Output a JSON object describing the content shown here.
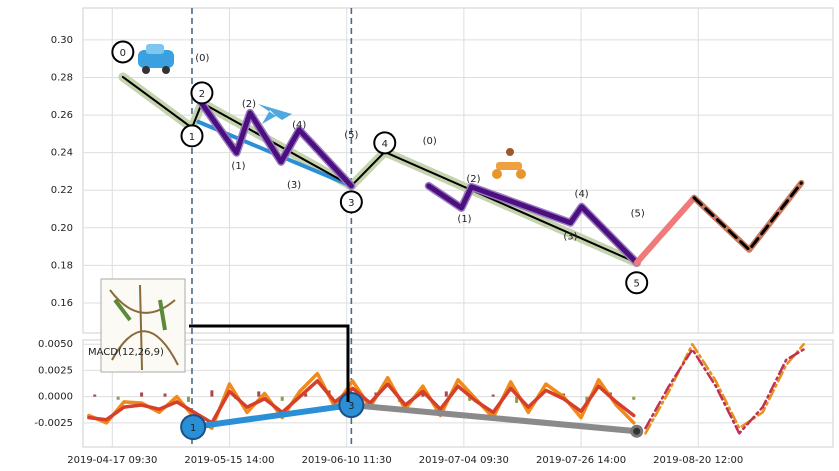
{
  "chart_data": [
    {
      "type": "line",
      "xlim": [
        0,
        128
      ],
      "ylim": [
        0.144,
        0.317
      ],
      "yticks": [
        {
          "value": 0.3,
          "label": "0.30"
        },
        0.28,
        0.26,
        0.24,
        0.22,
        {
          "value": 0.2,
          "label": "0.20"
        },
        0.18,
        0.16
      ],
      "grid": true,
      "series": [
        {
          "color": "#000000",
          "glow_color": "#c5d3ae",
          "x": [
            6.8,
            18.6,
            20.3,
            45.8,
            51.5,
            94.5
          ],
          "values": [
            0.2803,
            0.2532,
            0.2665,
            0.2223,
            0.2404,
            0.1814
          ],
          "point_labels": [
            "0",
            "1",
            "2",
            "3",
            "4",
            "5"
          ]
        },
        {
          "color": "#2b8fd6",
          "x": [
            19.7,
            45.8
          ],
          "values": [
            0.2564,
            0.2223
          ]
        },
        {
          "color": "#4b0f80",
          "x": [
            20.2,
            26.2,
            28.5,
            33.8,
            36.9,
            45.8
          ],
          "values": [
            0.2665,
            0.2399,
            0.2612,
            0.2351,
            0.2521,
            0.2223
          ],
          "point_labels": [
            "(0)",
            "(1)",
            "(2)",
            "(3)",
            "(4)",
            "(5)"
          ]
        },
        {
          "color": "#4b0f80",
          "x": [
            59.0,
            64.6,
            66.3,
            83.2,
            85.1,
            94.5
          ],
          "values": [
            0.2223,
            0.2106,
            0.2218,
            0.2027,
            0.2112,
            0.1814
          ],
          "point_labels": [
            "(0)",
            "(1)",
            "(2)",
            "(3)",
            "(4)",
            "(5)"
          ]
        },
        {
          "color": "#f07a7a",
          "x": [
            94.5,
            104.3
          ],
          "values": [
            0.1814,
            0.216
          ]
        },
        {
          "color": "#c8785a",
          "dash_color": "#000000",
          "x": [
            104.3,
            113.7,
            122.6
          ],
          "values": [
            0.216,
            0.1883,
            0.2239
          ]
        }
      ]
    },
    {
      "type": "line",
      "xlim": [
        0,
        128
      ],
      "ylim": [
        -0.0048,
        0.0054
      ],
      "yticks": [
        {
          "value": 0.005,
          "label": "0.0050"
        },
        0.0025,
        {
          "value": 0,
          "label": "0.0000"
        },
        -0.0025
      ],
      "xticks": [
        {
          "value": 5,
          "label": "2019-04-17 09:30"
        },
        {
          "value": 25,
          "label": "2019-05-15 14:00"
        },
        {
          "value": 45,
          "label": "2019-06-10 11:30"
        },
        {
          "value": 65,
          "label": "2019-07-04 09:30"
        },
        {
          "value": 85,
          "label": "2019-07-26 14:00"
        },
        {
          "value": 105,
          "label": "2019-08-20 12:00"
        }
      ],
      "grid": true,
      "label": "MACD(12,26,9)",
      "histogram": {
        "up_color": "#a84a4a",
        "down_color": "#8aa04a",
        "x": [
          2,
          6,
          10,
          14,
          18,
          22,
          26,
          30,
          34,
          38,
          42,
          46,
          50,
          54,
          58,
          62,
          66,
          70,
          74,
          78,
          82,
          86,
          90,
          94
        ],
        "values": [
          0.0002,
          -0.0003,
          0.0004,
          0.0003,
          -0.0005,
          0.0006,
          -0.0002,
          0.0005,
          -0.0004,
          0.0003,
          0.0006,
          -0.0003,
          0.0004,
          -0.0005,
          0.0003,
          0.0005,
          -0.0004,
          0.0002,
          -0.0006,
          0.0004,
          0.0003,
          -0.0005,
          0.0004,
          -0.0003
        ]
      },
      "series": [
        {
          "color": "#f08a1a",
          "x": [
            1,
            4,
            7,
            10,
            13,
            16,
            19,
            22,
            25,
            28,
            31,
            34,
            37,
            40,
            43,
            46,
            49,
            52,
            55,
            58,
            61,
            64,
            67,
            70,
            73,
            76,
            79,
            82,
            85,
            88,
            91,
            94
          ],
          "values": [
            -0.0018,
            -0.0025,
            -0.0005,
            -0.0006,
            -0.0015,
            0.0,
            -0.002,
            -0.003,
            0.0012,
            -0.0015,
            0.0003,
            -0.002,
            0.0005,
            0.0022,
            -0.001,
            0.0015,
            -0.001,
            0.0018,
            -0.0012,
            0.001,
            -0.0018,
            0.0016,
            -0.0002,
            -0.002,
            0.0014,
            -0.0015,
            0.0012,
            0.0,
            -0.002,
            0.0016,
            -0.0008,
            -0.0025
          ]
        },
        {
          "color": "#d6402a",
          "x": [
            1,
            4,
            7,
            10,
            13,
            16,
            19,
            22,
            25,
            28,
            31,
            34,
            37,
            40,
            43,
            46,
            49,
            52,
            55,
            58,
            61,
            64,
            67,
            70,
            73,
            76,
            79,
            82,
            85,
            88,
            91,
            94
          ],
          "values": [
            -0.002,
            -0.0022,
            -0.001,
            -0.0008,
            -0.0012,
            -0.0005,
            -0.0015,
            -0.0025,
            0.0005,
            -0.001,
            -0.0002,
            -0.0015,
            0.0,
            0.0015,
            -0.0005,
            0.0008,
            -0.0006,
            0.0012,
            -0.0008,
            0.0005,
            -0.0012,
            0.001,
            -0.0004,
            -0.0015,
            0.0008,
            -0.001,
            0.0006,
            -0.0002,
            -0.0014,
            0.001,
            -0.0005,
            -0.0018
          ]
        },
        {
          "color": "#e8901a",
          "dashed": true,
          "x": [
            96,
            100,
            104,
            108,
            112,
            116,
            120,
            123
          ],
          "values": [
            -0.0035,
            0.0005,
            0.005,
            0.0015,
            -0.003,
            -0.0015,
            0.003,
            0.005
          ]
        },
        {
          "color": "#c03050",
          "dashed": true,
          "x": [
            96,
            100,
            104,
            108,
            112,
            116,
            120,
            123
          ],
          "values": [
            -0.003,
            0.001,
            0.0045,
            0.001,
            -0.0035,
            -0.001,
            0.0035,
            0.0045
          ]
        },
        {
          "color": "#2b8fd6",
          "x": [
            18.8,
            45.8
          ],
          "values": [
            -0.0029,
            -0.0008
          ],
          "point_labels": [
            "1",
            "3"
          ]
        },
        {
          "color": "#8a8a8a",
          "x": [
            45.8,
            94.5
          ],
          "values": [
            -0.0008,
            -0.0033
          ]
        }
      ]
    }
  ]
}
